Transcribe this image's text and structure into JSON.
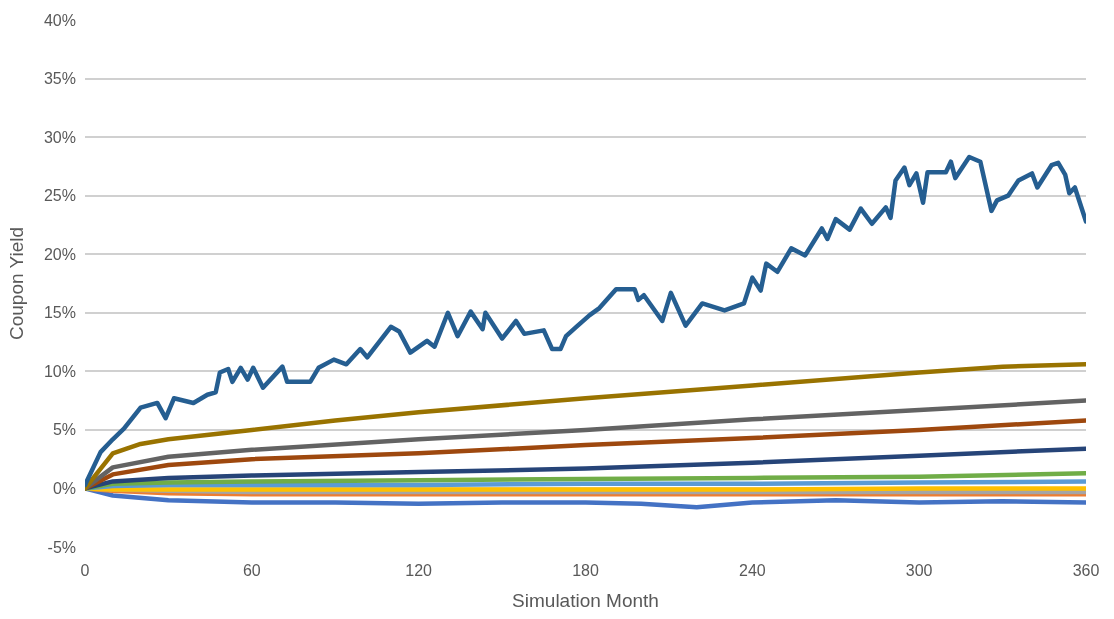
{
  "chart_data": {
    "type": "line",
    "xlabel": "Simulation Month",
    "ylabel": "Coupon Yield",
    "xlim": [
      0,
      360
    ],
    "xticks": [
      0,
      60,
      120,
      180,
      240,
      300,
      360
    ],
    "ylim": [
      -5,
      40
    ],
    "yticks": [
      {
        "value": -5,
        "label": "-5%"
      },
      {
        "value": 0,
        "label": "0%"
      },
      {
        "value": 5,
        "label": "5%"
      },
      {
        "value": 10,
        "label": "10%"
      },
      {
        "value": 15,
        "label": "15%"
      },
      {
        "value": 20,
        "label": "20%"
      },
      {
        "value": 25,
        "label": "25%"
      },
      {
        "value": 30,
        "label": "30%"
      },
      {
        "value": 35,
        "label": "35%"
      },
      {
        "value": 40,
        "label": "40%"
      }
    ],
    "grid": "y",
    "marker": "none",
    "line_style": "solid",
    "series": [
      {
        "color": "#4472c4",
        "x": [
          0,
          10,
          30,
          60,
          90,
          120,
          150,
          180,
          200,
          220,
          240,
          270,
          300,
          330,
          360
        ],
        "values": [
          0,
          -0.6,
          -1.0,
          -1.2,
          -1.2,
          -1.3,
          -1.2,
          -1.2,
          -1.3,
          -1.6,
          -1.2,
          -1.0,
          -1.2,
          -1.1,
          -1.2
        ]
      },
      {
        "color": "#ed7d31",
        "x": [
          0,
          10,
          30,
          60,
          120,
          180,
          240,
          300,
          360
        ],
        "values": [
          0,
          -0.2,
          -0.4,
          -0.5,
          -0.5,
          -0.5,
          -0.5,
          -0.5,
          -0.5
        ]
      },
      {
        "color": "#a5a5a5",
        "x": [
          0,
          10,
          30,
          60,
          120,
          180,
          240,
          300,
          360
        ],
        "values": [
          0,
          -0.1,
          -0.2,
          -0.3,
          -0.3,
          -0.3,
          -0.3,
          -0.3,
          -0.3
        ]
      },
      {
        "color": "#ffc000",
        "x": [
          0,
          10,
          30,
          60,
          120,
          180,
          240,
          300,
          360
        ],
        "values": [
          0,
          -0.1,
          -0.1,
          -0.1,
          -0.1,
          -0.1,
          -0.1,
          0.0,
          0.0
        ]
      },
      {
        "color": "#5b9bd5",
        "x": [
          0,
          10,
          30,
          60,
          120,
          180,
          240,
          300,
          360
        ],
        "values": [
          0,
          0.2,
          0.3,
          0.3,
          0.3,
          0.4,
          0.4,
          0.5,
          0.6
        ]
      },
      {
        "color": "#70ad47",
        "x": [
          0,
          10,
          30,
          60,
          120,
          180,
          240,
          300,
          360
        ],
        "values": [
          0,
          0.4,
          0.5,
          0.6,
          0.7,
          0.8,
          0.9,
          1.0,
          1.3
        ]
      },
      {
        "color": "#264478",
        "x": [
          0,
          10,
          30,
          60,
          120,
          180,
          240,
          300,
          360
        ],
        "values": [
          0,
          0.6,
          0.9,
          1.1,
          1.4,
          1.7,
          2.2,
          2.8,
          3.4
        ]
      },
      {
        "color": "#9e480e",
        "x": [
          0,
          10,
          30,
          60,
          120,
          180,
          240,
          300,
          360
        ],
        "values": [
          0,
          1.2,
          2.0,
          2.5,
          3.0,
          3.7,
          4.3,
          5.0,
          5.8
        ]
      },
      {
        "color": "#636363",
        "x": [
          0,
          10,
          30,
          60,
          120,
          180,
          240,
          300,
          360
        ],
        "values": [
          0,
          1.8,
          2.7,
          3.3,
          4.2,
          5.0,
          5.9,
          6.7,
          7.5
        ]
      },
      {
        "color": "#997300",
        "x": [
          0,
          10,
          20,
          30,
          60,
          90,
          120,
          180,
          240,
          300,
          330,
          360
        ],
        "values": [
          0,
          3.0,
          3.8,
          4.2,
          5.0,
          5.8,
          6.5,
          7.7,
          8.8,
          9.9,
          10.4,
          10.6
        ]
      },
      {
        "color": "#255e91",
        "x": [
          0,
          5.6,
          10,
          14,
          20,
          26,
          29,
          32,
          39,
          44,
          47,
          48.5,
          51.5,
          53,
          56,
          58.5,
          60.5,
          64,
          71,
          72.7,
          81,
          84,
          89.5,
          94,
          99,
          101.5,
          110,
          113,
          117,
          123,
          125.7,
          130.5,
          134,
          138.7,
          143,
          144,
          150,
          155,
          158,
          165,
          168,
          171,
          173,
          176.7,
          181.5,
          185,
          191,
          197.7,
          199,
          201,
          207.6,
          210.7,
          216,
          222,
          230,
          237,
          240,
          243,
          245,
          249,
          254,
          259,
          265,
          267,
          270,
          275,
          279,
          283,
          288,
          289.7,
          291.5,
          294.7,
          296.5,
          299,
          301.4,
          303,
          309.6,
          311.4,
          313,
          318,
          322,
          326,
          328,
          332,
          335.7,
          340.6,
          342.5,
          347.6,
          350,
          352.5,
          354,
          356,
          360
        ],
        "values": [
          0.3,
          3.1,
          4.2,
          5.1,
          6.9,
          7.3,
          6.0,
          7.7,
          7.3,
          8.0,
          8.2,
          9.9,
          10.2,
          9.1,
          10.3,
          9.3,
          10.3,
          8.6,
          10.4,
          9.1,
          9.1,
          10.3,
          11.0,
          10.6,
          11.9,
          11.2,
          13.8,
          13.4,
          11.6,
          12.6,
          12.1,
          15.0,
          13.0,
          15.1,
          13.6,
          15.0,
          12.8,
          14.3,
          13.2,
          13.5,
          11.9,
          11.9,
          13.0,
          13.8,
          14.8,
          15.4,
          17.0,
          17.0,
          16.1,
          16.5,
          14.3,
          16.7,
          13.9,
          15.8,
          15.2,
          15.8,
          18.0,
          16.9,
          19.2,
          18.5,
          20.5,
          19.9,
          22.2,
          21.3,
          23.0,
          22.1,
          23.9,
          22.6,
          24.0,
          23.1,
          26.3,
          27.4,
          25.9,
          26.9,
          24.4,
          27.0,
          27.0,
          27.9,
          26.5,
          28.3,
          27.9,
          23.7,
          24.6,
          25.0,
          26.3,
          26.9,
          25.7,
          27.6,
          27.8,
          26.8,
          25.2,
          25.7,
          22.8
        ]
      }
    ]
  }
}
